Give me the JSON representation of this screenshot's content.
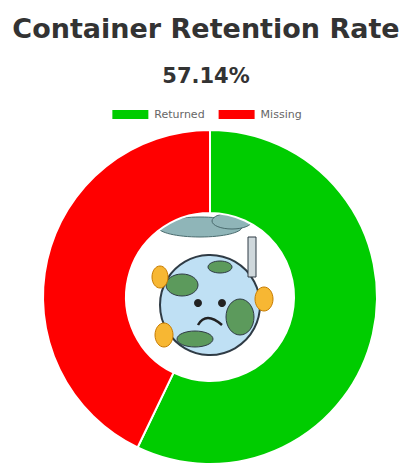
{
  "chart_data": {
    "type": "pie",
    "title": "Container Retention Rate",
    "subtitle": "57.14%",
    "categories": [
      "Returned",
      "Missing"
    ],
    "values": [
      57.14,
      42.86
    ],
    "colors": [
      "#00cc00",
      "#ff0000"
    ],
    "legend": "top",
    "data_labels": false
  }
}
